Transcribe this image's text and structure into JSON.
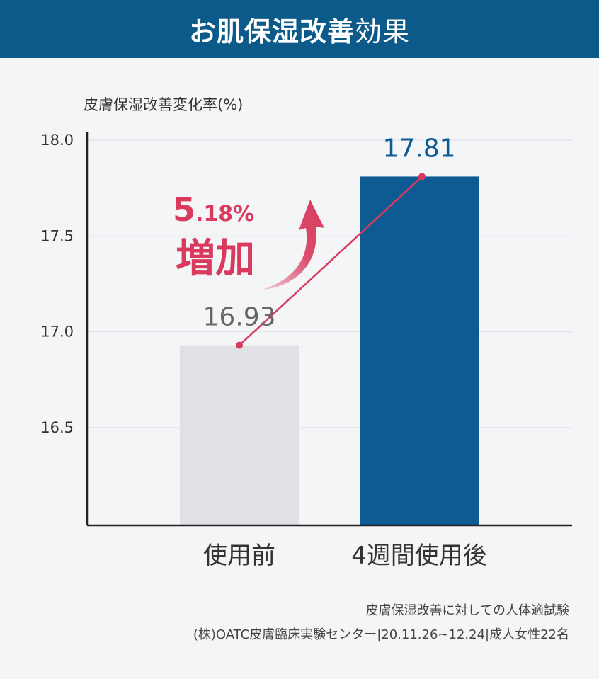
{
  "header": {
    "title_bold": "お肌保湿改善",
    "title_light": "効果"
  },
  "colors": {
    "header_bg": "#0b5a8a",
    "before_bar": "#e0e1e5",
    "after_bar": "#0d5b92",
    "trend_line": "#d93a5e",
    "axis": "#222222",
    "grid": "#e2e4ea"
  },
  "chart_data": {
    "type": "bar",
    "ylabel": "皮膚保湿改善変化率(%)",
    "categories": [
      "使用前",
      "4週間使用後"
    ],
    "values": [
      16.93,
      17.81
    ],
    "value_labels": [
      "16.93",
      "17.81"
    ],
    "yticks": [
      "18.0",
      "17.5",
      "17.0",
      "16.5"
    ],
    "ylim": [
      16.0,
      18.0
    ],
    "grid": true,
    "annotation": {
      "percent_big": "5",
      "percent_small": ".18%",
      "text": "増加"
    }
  },
  "footnote": {
    "line1": "皮膚保湿改善に対しての人体適試験",
    "line2": "(株)OATC皮膚臨床実験センター|20.11.26~12.24|成人女性22名"
  }
}
